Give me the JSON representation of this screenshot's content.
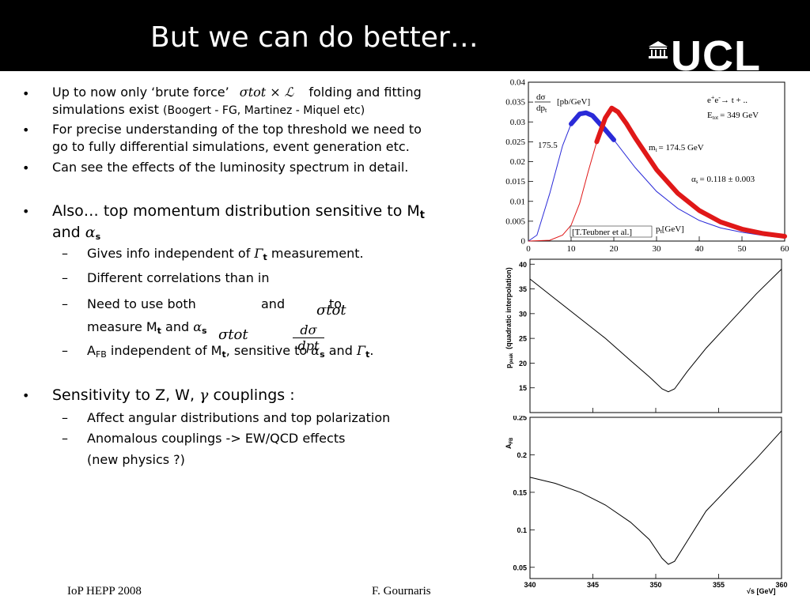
{
  "title": "But we can do better…",
  "logo_text": "UCL",
  "bullets": [
    {
      "text1": "Up to now only ‘brute force’",
      "formula": "σtot × ℒ",
      "text2": "folding and fitting",
      "text3": "simulations exist",
      "ref": "(Boogert - FG, Martinez - Miquel etc)"
    },
    {
      "text": "For precise understanding of the top threshold we need to",
      "text2": "go to fully differential simulations, event generation etc."
    },
    {
      "text": "Can see the effects of the luminosity spectrum in detail."
    },
    {
      "text": "Also… top momentum distribution sensitive to M",
      "sub": "t",
      "text2": "and",
      "alpha": "α",
      "alpha_sub": "s"
    }
  ],
  "sub_bullets": [
    {
      "text": "Gives info independent of",
      "gamma": "Γ",
      "gamma_sub": "t",
      "text2": "measurement."
    },
    {
      "text": "Different correlations than in"
    },
    {
      "text": "Need to use both",
      "and": "and",
      "to": "to",
      "text2": "measure M",
      "sub": "t",
      "and2": "and",
      "alpha": "α",
      "alpha_sub": "s",
      "f1": "σtot",
      "f2": "σtot",
      "f3_num": "dσ",
      "f3_den": "dpt"
    },
    {
      "a": "A",
      "a_sub": "FB",
      "text": "independent of M",
      "sub": "t",
      "text2": "sensitive to",
      "alpha": "α",
      "alpha_sub": "s",
      "and": "and",
      "gamma": "Γ",
      "gamma_sub": "t"
    }
  ],
  "bullet5": {
    "text": "Sensitivity to Z, W,",
    "gamma": "γ",
    "text2": "couplings :"
  },
  "sub_bullets2": [
    {
      "text": "Affect angular distributions and top polarization"
    },
    {
      "text": "Anomalous couplings -> EW/QCD effects"
    },
    {
      "text": "(new physics ?)"
    }
  ],
  "footer": {
    "left": "IoP HEPP 2008",
    "right": "F. Gournaris"
  },
  "chart_data": [
    {
      "type": "line",
      "ylabel_num": "dσ",
      "ylabel_den": "dp",
      "ylabel_den_sub": "t",
      "ylabel_unit": "[pb/GeV]",
      "xlabel": "p",
      "xlabel_sub": "t",
      "xlabel_unit": "[GeV]",
      "xlim": [
        0,
        60
      ],
      "ylim": [
        0,
        0.04
      ],
      "xticks": [
        "0",
        "10",
        "20",
        "30",
        "40",
        "50",
        "60"
      ],
      "yticks": [
        "0",
        "0.005",
        "0.01",
        "0.015",
        "0.02",
        "0.025",
        "0.03",
        "0.035",
        "0.04"
      ],
      "annotations": [
        "e+e- → t + ..",
        "Etot = 349 GeV",
        "mt = 174.5 GeV",
        "αs = 0.118 ± 0.003",
        "175.5"
      ],
      "annotation_parts": {
        "process": "e",
        "plus": "+",
        "minus": "-",
        "arrow": "→ t + ..",
        "etot": "E",
        "etot_sub": "tot",
        "etot_val": "= 349 GeV",
        "mt": "m",
        "mt_sub": "t",
        "mt_val": "= 174.5 GeV",
        "as": "α",
        "as_sub": "s",
        "as_val": "= 0.118 ± 0.003",
        "m2": "175.5"
      },
      "citation": "[T.Teubner et al.]",
      "series": [
        {
          "color": "#2a2ad8",
          "x": [
            0,
            2,
            5,
            8,
            10,
            12,
            13.5,
            15,
            18,
            20,
            25,
            30,
            35,
            40,
            45,
            50,
            55,
            60
          ],
          "y": [
            0,
            0.0015,
            0.012,
            0.024,
            0.0295,
            0.032,
            0.0323,
            0.0316,
            0.028,
            0.0255,
            0.0185,
            0.0125,
            0.0082,
            0.0052,
            0.0033,
            0.0022,
            0.0014,
            0.0008
          ]
        },
        {
          "color": "#e01818",
          "x": [
            0,
            5,
            8,
            10,
            12,
            14,
            16,
            18,
            19.5,
            21,
            23,
            25,
            30,
            35,
            40,
            45,
            50,
            55,
            60
          ],
          "y": [
            0,
            0.0002,
            0.0015,
            0.004,
            0.0095,
            0.0175,
            0.025,
            0.031,
            0.0335,
            0.0325,
            0.0295,
            0.026,
            0.018,
            0.012,
            0.0077,
            0.0048,
            0.003,
            0.0019,
            0.0012
          ]
        }
      ]
    },
    {
      "type": "line",
      "ylabel": "p",
      "ylabel_sub": "peak",
      "ylabel_rest": "(quadratic interpolation)",
      "xlim": [
        340,
        360
      ],
      "ylim": [
        10,
        41
      ],
      "yticks": [
        "15",
        "20",
        "25",
        "30",
        "35",
        "40"
      ],
      "series": [
        {
          "x": [
            340,
            342,
            344,
            346,
            348,
            349.5,
            350.5,
            351,
            351.5,
            352.5,
            354,
            356,
            358,
            360
          ],
          "y": [
            37,
            33,
            29,
            25,
            20.5,
            17.2,
            14.8,
            14.2,
            14.8,
            18.3,
            23,
            28.5,
            34,
            39
          ]
        }
      ]
    },
    {
      "type": "line",
      "ylabel": "A",
      "ylabel_sub": "FB",
      "xlabel": "√s [GeV]",
      "xlim": [
        340,
        360
      ],
      "ylim": [
        0.035,
        0.25
      ],
      "xticks": [
        "340",
        "345",
        "350",
        "355",
        "360"
      ],
      "yticks": [
        "0.05",
        "0.1",
        "0.15",
        "0.2",
        "0.25"
      ],
      "series": [
        {
          "x": [
            340,
            342,
            344,
            346,
            348,
            349.5,
            350.5,
            351,
            351.5,
            352.5,
            354,
            356,
            358,
            360
          ],
          "y": [
            0.17,
            0.162,
            0.15,
            0.133,
            0.11,
            0.087,
            0.062,
            0.054,
            0.058,
            0.085,
            0.125,
            0.16,
            0.195,
            0.232
          ]
        }
      ]
    }
  ]
}
